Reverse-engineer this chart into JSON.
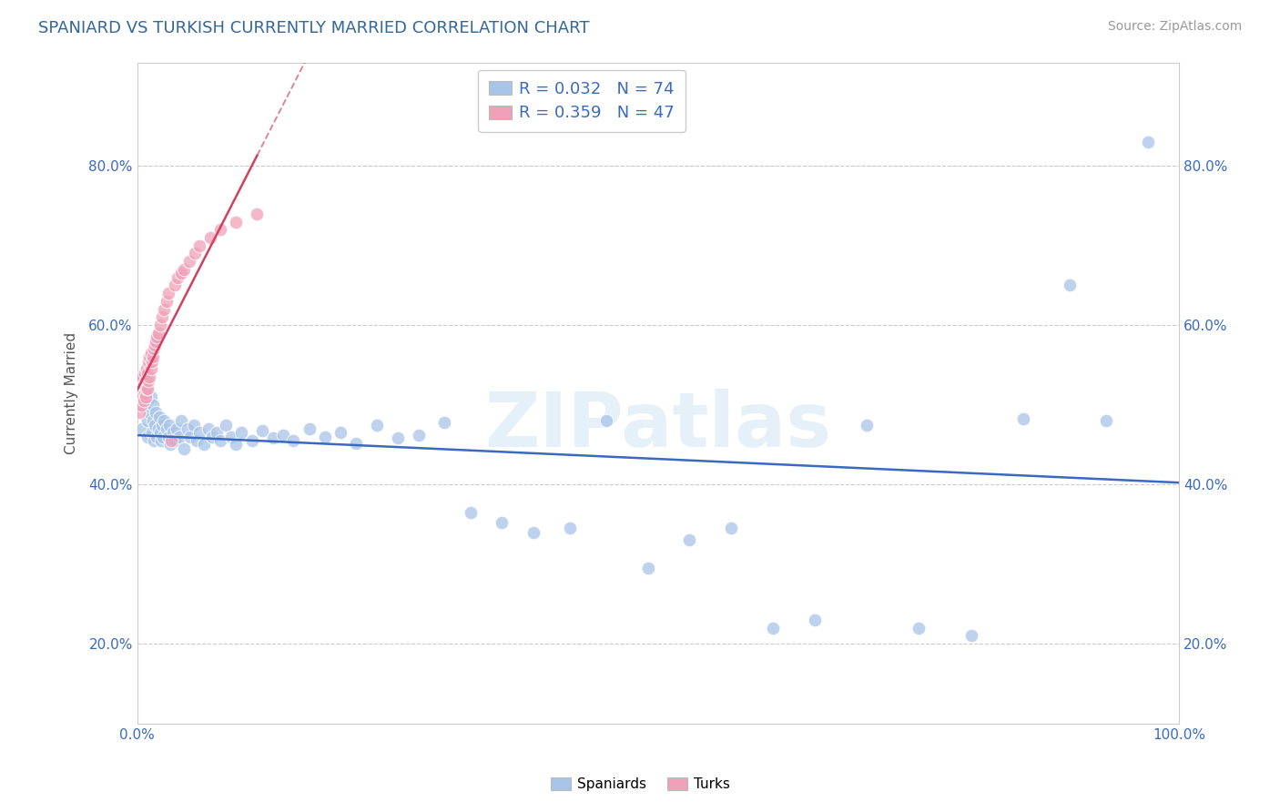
{
  "title": "SPANIARD VS TURKISH CURRENTLY MARRIED CORRELATION CHART",
  "source_text": "Source: ZipAtlas.com",
  "ylabel": "Currently Married",
  "xlim": [
    0,
    1
  ],
  "ylim": [
    0.1,
    0.93
  ],
  "yticks": [
    0.2,
    0.4,
    0.6,
    0.8
  ],
  "ytick_labels": [
    "20.0%",
    "40.0%",
    "60.0%",
    "80.0%"
  ],
  "legend_labels": [
    "Spaniards",
    "Turks"
  ],
  "blue_color": "#a8c4e8",
  "pink_color": "#f0a0b8",
  "blue_line_color": "#3a6abf",
  "pink_line_color": "#d04060",
  "title_color": "#336699",
  "watermark": "ZIPatlas",
  "R_blue": 0.032,
  "N_blue": 74,
  "R_pink": 0.359,
  "N_pink": 47,
  "spaniards_x": [
    0.005,
    0.008,
    0.01,
    0.01,
    0.012,
    0.013,
    0.014,
    0.015,
    0.015,
    0.016,
    0.017,
    0.018,
    0.019,
    0.02,
    0.021,
    0.022,
    0.023,
    0.024,
    0.025,
    0.026,
    0.028,
    0.03,
    0.031,
    0.032,
    0.034,
    0.036,
    0.038,
    0.04,
    0.042,
    0.045,
    0.048,
    0.051,
    0.054,
    0.057,
    0.06,
    0.064,
    0.068,
    0.072,
    0.076,
    0.08,
    0.085,
    0.09,
    0.095,
    0.1,
    0.11,
    0.12,
    0.13,
    0.14,
    0.15,
    0.165,
    0.18,
    0.195,
    0.21,
    0.23,
    0.25,
    0.27,
    0.295,
    0.32,
    0.35,
    0.38,
    0.415,
    0.45,
    0.49,
    0.53,
    0.57,
    0.61,
    0.65,
    0.7,
    0.75,
    0.8,
    0.85,
    0.895,
    0.93,
    0.97
  ],
  "spaniards_y": [
    0.47,
    0.5,
    0.48,
    0.46,
    0.49,
    0.51,
    0.465,
    0.48,
    0.5,
    0.455,
    0.475,
    0.49,
    0.46,
    0.47,
    0.485,
    0.465,
    0.455,
    0.475,
    0.46,
    0.48,
    0.47,
    0.46,
    0.475,
    0.45,
    0.465,
    0.455,
    0.47,
    0.46,
    0.48,
    0.445,
    0.47,
    0.46,
    0.475,
    0.455,
    0.465,
    0.45,
    0.47,
    0.46,
    0.465,
    0.455,
    0.475,
    0.46,
    0.45,
    0.465,
    0.455,
    0.468,
    0.458,
    0.462,
    0.455,
    0.47,
    0.46,
    0.465,
    0.452,
    0.475,
    0.458,
    0.462,
    0.478,
    0.365,
    0.352,
    0.34,
    0.345,
    0.48,
    0.295,
    0.33,
    0.345,
    0.22,
    0.23,
    0.475,
    0.22,
    0.21,
    0.483,
    0.65,
    0.48,
    0.83
  ],
  "turks_x": [
    0.002,
    0.003,
    0.003,
    0.004,
    0.004,
    0.005,
    0.005,
    0.006,
    0.006,
    0.007,
    0.007,
    0.008,
    0.008,
    0.009,
    0.009,
    0.01,
    0.01,
    0.011,
    0.011,
    0.012,
    0.012,
    0.013,
    0.013,
    0.014,
    0.015,
    0.016,
    0.017,
    0.018,
    0.019,
    0.02,
    0.022,
    0.024,
    0.026,
    0.028,
    0.03,
    0.033,
    0.036,
    0.039,
    0.042,
    0.045,
    0.05,
    0.055,
    0.06,
    0.07,
    0.08,
    0.095,
    0.115
  ],
  "turks_y": [
    0.49,
    0.51,
    0.53,
    0.5,
    0.52,
    0.51,
    0.535,
    0.505,
    0.525,
    0.515,
    0.54,
    0.51,
    0.53,
    0.52,
    0.545,
    0.52,
    0.54,
    0.53,
    0.555,
    0.535,
    0.56,
    0.545,
    0.565,
    0.555,
    0.56,
    0.57,
    0.575,
    0.58,
    0.585,
    0.59,
    0.6,
    0.61,
    0.62,
    0.63,
    0.64,
    0.455,
    0.65,
    0.66,
    0.665,
    0.67,
    0.68,
    0.69,
    0.7,
    0.71,
    0.72,
    0.73,
    0.74
  ]
}
